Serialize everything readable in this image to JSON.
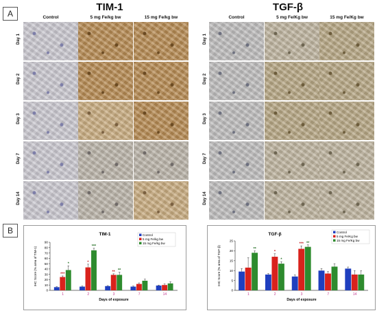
{
  "panel_a_label": "A",
  "panel_b_label": "B",
  "tim1": {
    "title": "TIM-1",
    "columns": [
      "Control",
      "5 mg Fe/kg bw",
      "15 mg Fe/kg bw"
    ],
    "rows": [
      "Day 1",
      "Day 2",
      "Day 3",
      "Day 7",
      "Day 14"
    ]
  },
  "tgfb": {
    "title": "TGF-β",
    "columns": [
      "Control",
      "5 mg Fe/Kg bw",
      "15 mg Fe/Kg bw"
    ],
    "rows": [
      "Day 1",
      "Day 2",
      "Day 3",
      "Day 7",
      "Day 14"
    ]
  },
  "colors": {
    "control": "#1f3fbf",
    "low": "#d9221c",
    "high": "#2e8b2e",
    "highlight": "#f6c9e6",
    "tile_control": "#c9c7cf",
    "tile_brown": "#b58a52",
    "tile_light_brown": "#c7ab7f",
    "tile_grey": "#b9b3a8"
  },
  "chart_data": [
    {
      "type": "bar",
      "title": "TIM-1",
      "xlabel": "Days of exposure",
      "ylabel": "IHC Score (% area of TIM-1)",
      "categories": [
        "1",
        "2",
        "3",
        "7",
        "14"
      ],
      "ylim": [
        0,
        90
      ],
      "yticks": [
        "0",
        "10",
        "20",
        "30",
        "40",
        "50",
        "60",
        "70",
        "80",
        "90"
      ],
      "legend_position": "top-right",
      "series": [
        {
          "name": "Control",
          "values": [
            6,
            7,
            8,
            7,
            9
          ],
          "errors": [
            1,
            1,
            1,
            1,
            1
          ],
          "sig": [
            "",
            "",
            "",
            "",
            ""
          ]
        },
        {
          "name": "5 mg Fe/kg bw",
          "values": [
            25,
            43,
            29,
            12,
            10
          ],
          "errors": [
            2,
            6,
            2,
            2,
            2
          ],
          "sig": [
            "***",
            "*",
            "**",
            "",
            ""
          ]
        },
        {
          "name": "15 mg Fe/kg bw",
          "values": [
            38,
            75,
            29,
            18,
            13
          ],
          "errors": [
            8,
            4,
            5,
            3,
            3
          ],
          "sig": [
            "*",
            "***",
            "**",
            "",
            ""
          ]
        }
      ]
    },
    {
      "type": "bar",
      "title": "TGF-β",
      "xlabel": "Days of exposure",
      "ylabel": "IHC Score (% area of TGF-β)",
      "categories": [
        "1",
        "2",
        "3",
        "7",
        "14"
      ],
      "ylim": [
        0,
        25
      ],
      "yticks": [
        "0",
        "5",
        "10",
        "15",
        "20",
        "25"
      ],
      "legend_position": "top-right",
      "series": [
        {
          "name": "Control",
          "values": [
            9.5,
            8,
            7,
            10,
            11
          ],
          "errors": [
            1.5,
            0.5,
            0.8,
            1,
            0.8
          ],
          "sig": [
            "",
            "",
            "",
            "",
            ""
          ]
        },
        {
          "name": "5 mg Fe/Kg bw",
          "values": [
            11.5,
            17,
            21,
            8.5,
            8
          ],
          "errors": [
            5,
            1.5,
            1.5,
            1,
            2
          ],
          "sig": [
            "",
            "*",
            "***",
            "",
            ""
          ]
        },
        {
          "name": "15 mg Fe/Kg bw",
          "values": [
            19,
            13.5,
            22,
            12,
            8
          ],
          "errors": [
            1,
            1,
            1,
            1.5,
            2
          ],
          "sig": [
            "**",
            "*",
            "**",
            "",
            ""
          ]
        }
      ]
    }
  ]
}
